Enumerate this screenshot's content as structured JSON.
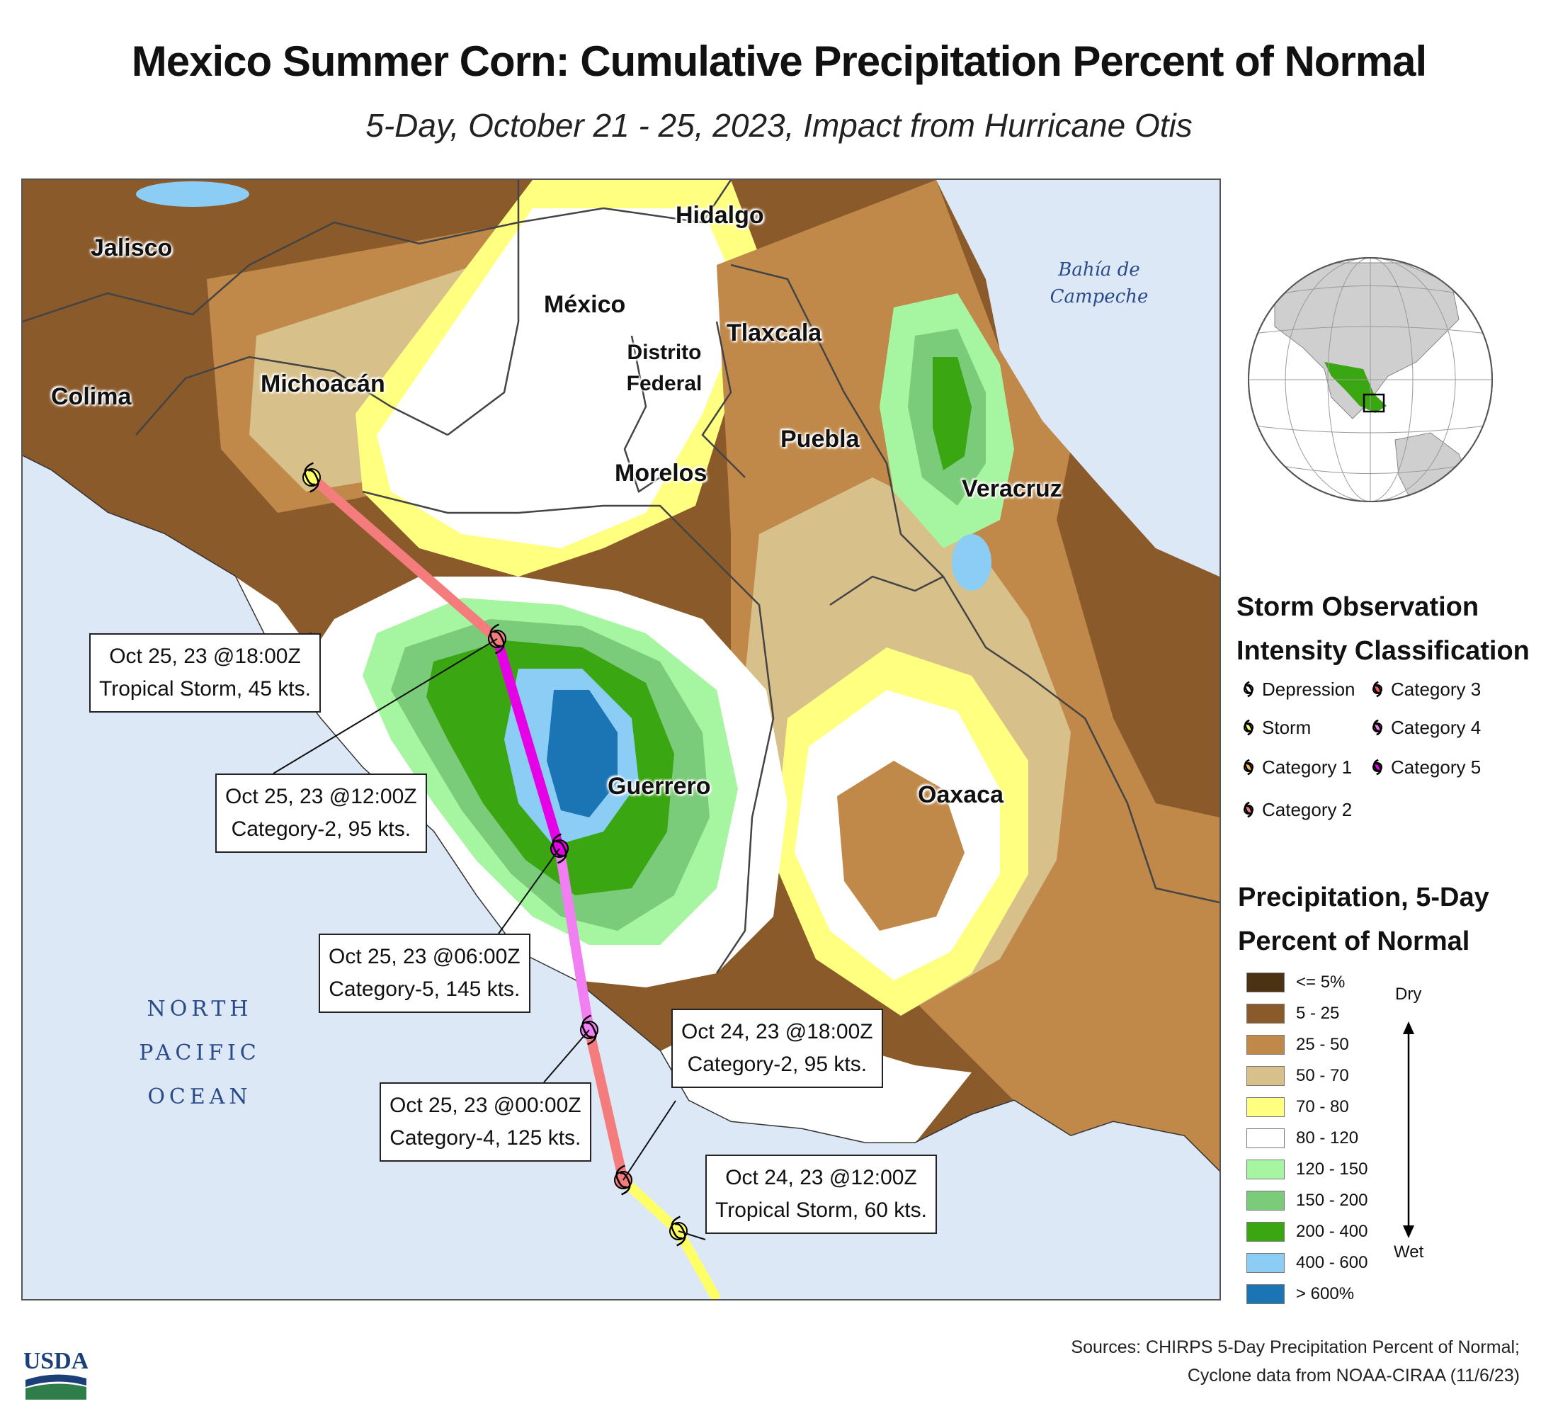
{
  "title": "Mexico Summer Corn: Cumulative Precipitation Percent of Normal",
  "subtitle": "5-Day, October 21 - 25, 2023, Impact from Hurricane Otis",
  "states": [
    "Jalisco",
    "Colima",
    "Michoacán",
    "México",
    "Hidalgo",
    "Distrito Federal",
    "Tlaxcala",
    "Morelos",
    "Puebla",
    "Veracruz",
    "Guerrero",
    "Oaxaca"
  ],
  "water_labels": {
    "ocean": [
      "NORTH",
      "PACIFIC",
      "OCEAN"
    ],
    "bay": [
      "Bahía de",
      "Campeche"
    ]
  },
  "track_points": [
    {
      "time": "Oct 25, 23 @18:00Z",
      "desc": "Tropical Storm, 45 kts.",
      "category": "Storm"
    },
    {
      "time": "Oct 25, 23 @12:00Z",
      "desc": "Category-2, 95 kts.",
      "category": "Category 2"
    },
    {
      "time": "Oct 25, 23 @06:00Z",
      "desc": "Category-5, 145 kts.",
      "category": "Category 5"
    },
    {
      "time": "Oct 25, 23 @00:00Z",
      "desc": "Category-4, 125 kts.",
      "category": "Category 4"
    },
    {
      "time": "Oct 24, 23 @18:00Z",
      "desc": "Category-2, 95 kts.",
      "category": "Category 2"
    },
    {
      "time": "Oct 24, 23 @12:00Z",
      "desc": "Tropical Storm, 60 kts.",
      "category": "Storm"
    }
  ],
  "storm_legend": {
    "title_line1": "Storm Observation",
    "title_line2": "Intensity Classification",
    "items": [
      {
        "label": "Depression",
        "color": "#ffffff"
      },
      {
        "label": "Storm",
        "color": "#ffff66"
      },
      {
        "label": "Category 1",
        "color": "#ffb84d"
      },
      {
        "label": "Category 2",
        "color": "#f47c7c"
      },
      {
        "label": "Category 3",
        "color": "#f25f5c"
      },
      {
        "label": "Category 4",
        "color": "#f27ff2"
      },
      {
        "label": "Category 5",
        "color": "#e600e6"
      }
    ]
  },
  "precip_legend": {
    "title_line1": "Precipitation, 5-Day",
    "title_line2": "Percent of Normal",
    "dry_label": "Dry",
    "wet_label": "Wet",
    "items": [
      {
        "label": "<= 5%",
        "color": "#4a3212"
      },
      {
        "label": "5 - 25",
        "color": "#8b5a2b"
      },
      {
        "label": "25 - 50",
        "color": "#c0894a"
      },
      {
        "label": "50 - 70",
        "color": "#d8c08a"
      },
      {
        "label": "70 - 80",
        "color": "#ffff80"
      },
      {
        "label": "80 - 120",
        "color": "#ffffff"
      },
      {
        "label": "120 - 150",
        "color": "#a6f5a0"
      },
      {
        "label": "150 - 200",
        "color": "#7acb7a"
      },
      {
        "label": "200 - 400",
        "color": "#3aa612"
      },
      {
        "label": "400 - 600",
        "color": "#8ccdf5"
      },
      {
        "label": "> 600%",
        "color": "#1b74b4"
      }
    ]
  },
  "sources_line1": "Sources: CHIRPS 5-Day Precipitation Percent of Normal;",
  "sources_line2": "Cyclone data from NOAA-CIRAA (11/6/23)",
  "logo_text": "USDA"
}
